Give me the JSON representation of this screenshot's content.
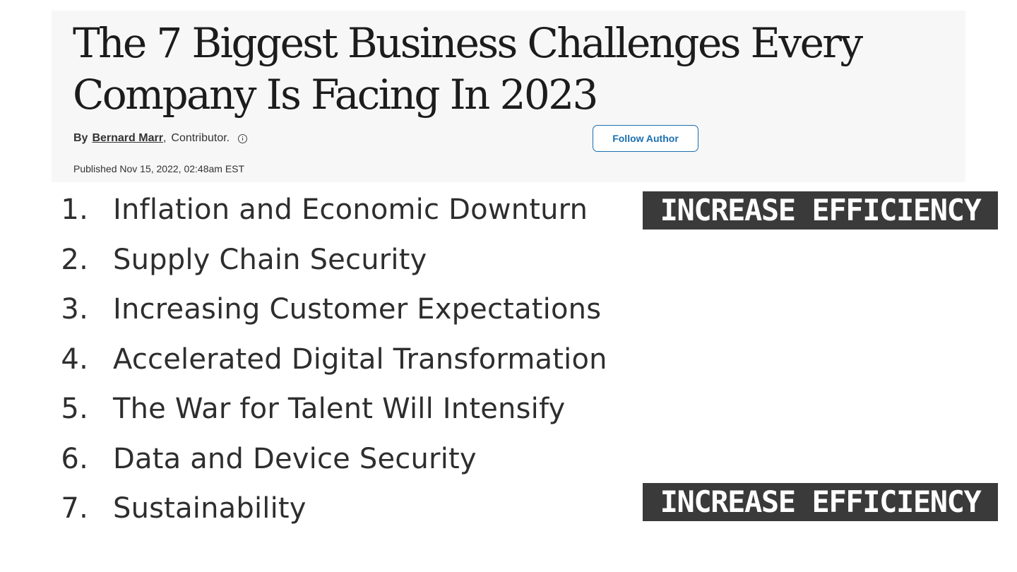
{
  "article": {
    "headline": "The 7 Biggest Business Challenges Every Company Is Facing In 2023",
    "by_label": "By",
    "author_name": "Bernard Marr",
    "author_role": "Contributor.",
    "follow_button_label": "Follow Author",
    "published": "Published Nov 15, 2022, 02:48am EST",
    "info_icon": "info-circle-icon"
  },
  "challenges": [
    {
      "number": "1.",
      "text": "Inflation and Economic Downturn"
    },
    {
      "number": "2.",
      "text": "Supply Chain Security"
    },
    {
      "number": "3.",
      "text": "Increasing Customer Expectations"
    },
    {
      "number": "4.",
      "text": "Accelerated Digital Transformation"
    },
    {
      "number": "5.",
      "text": "The War for Talent Will Intensify"
    },
    {
      "number": "6.",
      "text": "Data and Device Security"
    },
    {
      "number": "7.",
      "text": "Sustainability"
    }
  ],
  "overlays": {
    "top_label": "INCREASE EFFICIENCY",
    "bottom_label": "INCREASE EFFICIENCY"
  },
  "colors": {
    "card_background": "#f7f7f7",
    "follow_button_accent": "#1a6fb0",
    "overlay_background": "#3a3a3a",
    "overlay_text": "#ffffff",
    "list_text": "#2e2e2e"
  }
}
